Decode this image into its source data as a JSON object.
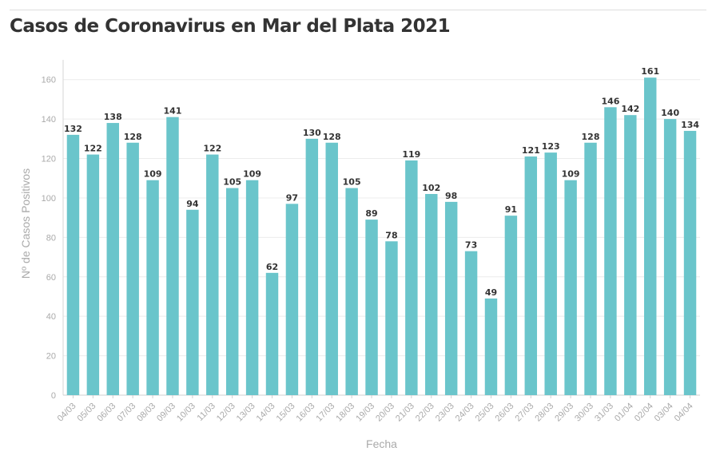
{
  "title": "Casos de Coronavirus en Mar del Plata 2021",
  "chart_data": {
    "type": "bar",
    "title": "Casos de Coronavirus en Mar del Plata 2021",
    "xlabel": "Fecha",
    "ylabel": "Nº de Casos Positivos",
    "ylim": [
      0,
      170
    ],
    "yticks": [
      0,
      20,
      40,
      60,
      80,
      100,
      120,
      140,
      160
    ],
    "grid": true,
    "bar_color": "#6ac5cb",
    "categories": [
      "04/03",
      "05/03",
      "06/03",
      "07/03",
      "08/03",
      "09/03",
      "10/03",
      "11/03",
      "12/03",
      "13/03",
      "14/03",
      "15/03",
      "16/03",
      "17/03",
      "18/03",
      "19/03",
      "20/03",
      "21/03",
      "22/03",
      "23/03",
      "24/03",
      "25/03",
      "26/03",
      "27/03",
      "28/03",
      "29/03",
      "30/03",
      "31/03",
      "01/04",
      "02/04",
      "03/04",
      "04/04"
    ],
    "values": [
      132,
      122,
      138,
      128,
      109,
      141,
      94,
      122,
      105,
      109,
      62,
      97,
      130,
      128,
      105,
      89,
      78,
      119,
      102,
      98,
      73,
      49,
      91,
      121,
      123,
      109,
      128,
      146,
      142,
      161,
      140,
      134
    ],
    "data_labels": true
  }
}
